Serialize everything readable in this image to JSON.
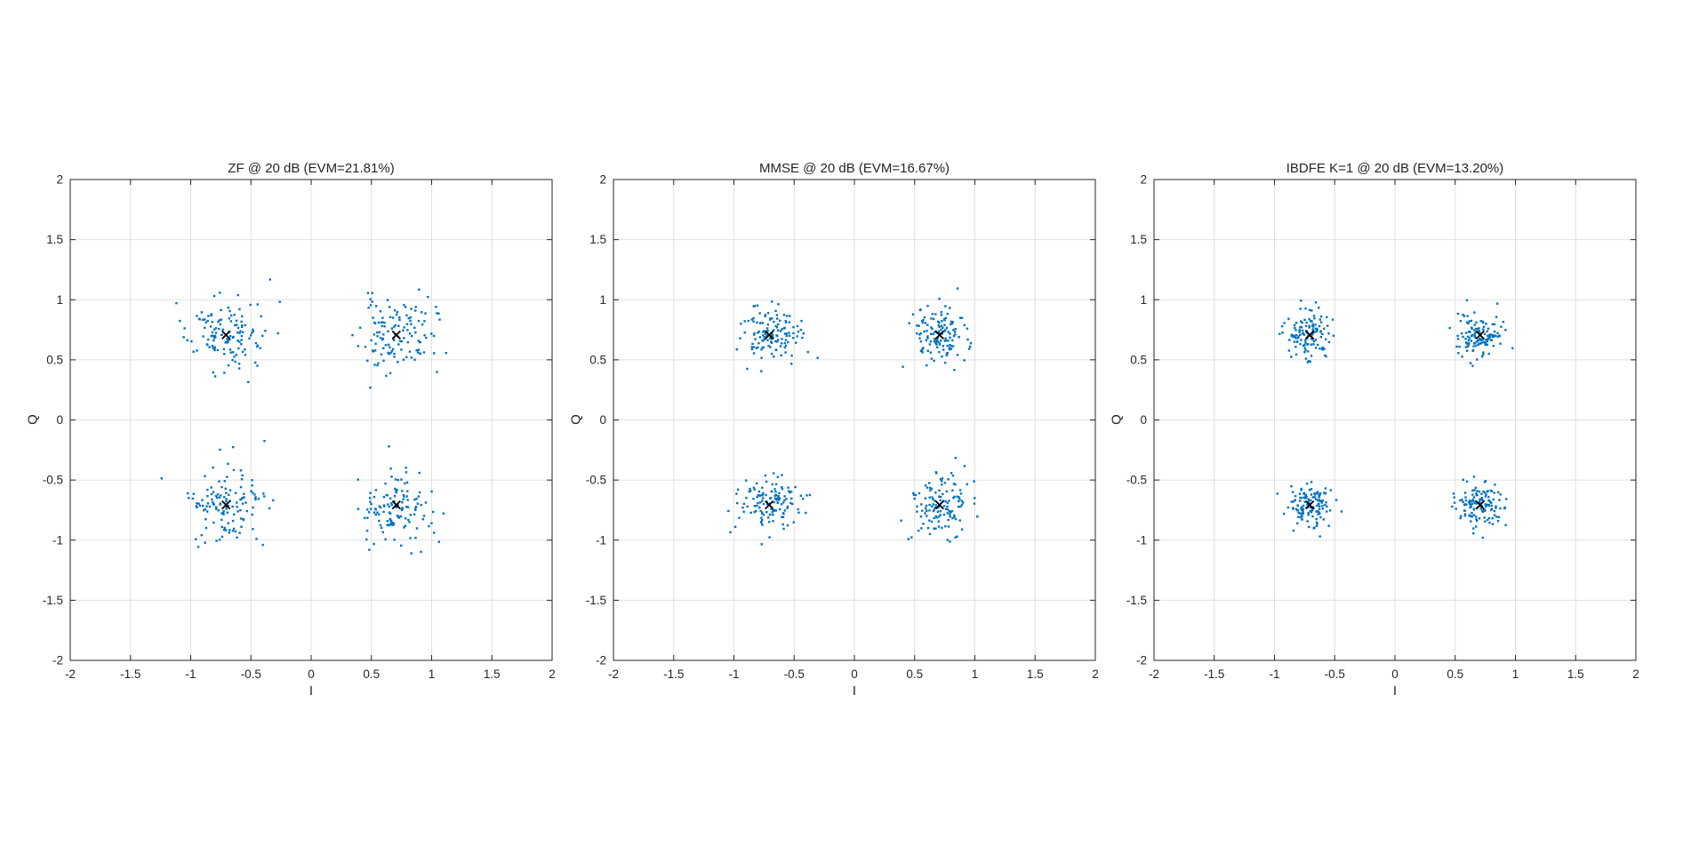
{
  "figure": {
    "background_color": "#ffffff",
    "axis_color": "#262626",
    "grid_color": "#e0e0e0",
    "text_color": "#262626",
    "point_color": "#0072bd",
    "ref_marker_color": "#000000"
  },
  "chart_data": [
    {
      "type": "scatter",
      "title": "ZF @ 20 dB (EVM=21.81%)",
      "equalizer": "ZF",
      "snr_db": 20,
      "evm_percent": 21.81,
      "xlabel": "I",
      "ylabel": "Q",
      "xlim": [
        -2,
        2
      ],
      "ylim": [
        -2,
        2
      ],
      "tick_values": [
        -2,
        -1.5,
        -1,
        -0.5,
        0,
        0.5,
        1,
        1.5,
        2
      ],
      "tick_labels": [
        "-2",
        "-1.5",
        "-1",
        "-0.5",
        "0",
        "0.5",
        "1",
        "1.5",
        "2"
      ],
      "grid": true,
      "legend": null,
      "reference_points": [
        [
          0.7071,
          0.7071
        ],
        [
          -0.7071,
          0.7071
        ],
        [
          -0.7071,
          -0.7071
        ],
        [
          0.7071,
          -0.7071
        ]
      ],
      "cluster_centers": [
        [
          0.7071,
          0.7071
        ],
        [
          -0.7071,
          0.7071
        ],
        [
          -0.7071,
          -0.7071
        ],
        [
          0.7071,
          -0.7071
        ]
      ],
      "cluster_sigma": 0.154,
      "points_per_cluster": 130,
      "seed": 11
    },
    {
      "type": "scatter",
      "title": "MMSE @ 20 dB (EVM=16.67%)",
      "equalizer": "MMSE",
      "snr_db": 20,
      "evm_percent": 16.67,
      "xlabel": "I",
      "ylabel": "Q",
      "xlim": [
        -2,
        2
      ],
      "ylim": [
        -2,
        2
      ],
      "tick_values": [
        -2,
        -1.5,
        -1,
        -0.5,
        0,
        0.5,
        1,
        1.5,
        2
      ],
      "tick_labels": [
        "-2",
        "-1.5",
        "-1",
        "-0.5",
        "0",
        "0.5",
        "1",
        "1.5",
        "2"
      ],
      "grid": true,
      "legend": null,
      "reference_points": [
        [
          0.7071,
          0.7071
        ],
        [
          -0.7071,
          0.7071
        ],
        [
          -0.7071,
          -0.7071
        ],
        [
          0.7071,
          -0.7071
        ]
      ],
      "cluster_centers": [
        [
          0.7071,
          0.7071
        ],
        [
          -0.7071,
          0.7071
        ],
        [
          -0.7071,
          -0.7071
        ],
        [
          0.7071,
          -0.7071
        ]
      ],
      "cluster_sigma": 0.118,
      "points_per_cluster": 130,
      "seed": 23
    },
    {
      "type": "scatter",
      "title": "IBDFE K=1 @ 20 dB (EVM=13.20%)",
      "equalizer": "IBDFE K=1",
      "snr_db": 20,
      "evm_percent": 13.2,
      "xlabel": "I",
      "ylabel": "Q",
      "xlim": [
        -2,
        2
      ],
      "ylim": [
        -2,
        2
      ],
      "tick_values": [
        -2,
        -1.5,
        -1,
        -0.5,
        0,
        0.5,
        1,
        1.5,
        2
      ],
      "tick_labels": [
        "-2",
        "-1.5",
        "-1",
        "-0.5",
        "0",
        "0.5",
        "1",
        "1.5",
        "2"
      ],
      "grid": true,
      "legend": null,
      "reference_points": [
        [
          0.7071,
          0.7071
        ],
        [
          -0.7071,
          0.7071
        ],
        [
          -0.7071,
          -0.7071
        ],
        [
          0.7071,
          -0.7071
        ]
      ],
      "cluster_centers": [
        [
          0.7071,
          0.7071
        ],
        [
          -0.7071,
          0.7071
        ],
        [
          -0.7071,
          -0.7071
        ],
        [
          0.7071,
          -0.7071
        ]
      ],
      "cluster_sigma": 0.093,
      "points_per_cluster": 130,
      "seed": 37
    }
  ]
}
